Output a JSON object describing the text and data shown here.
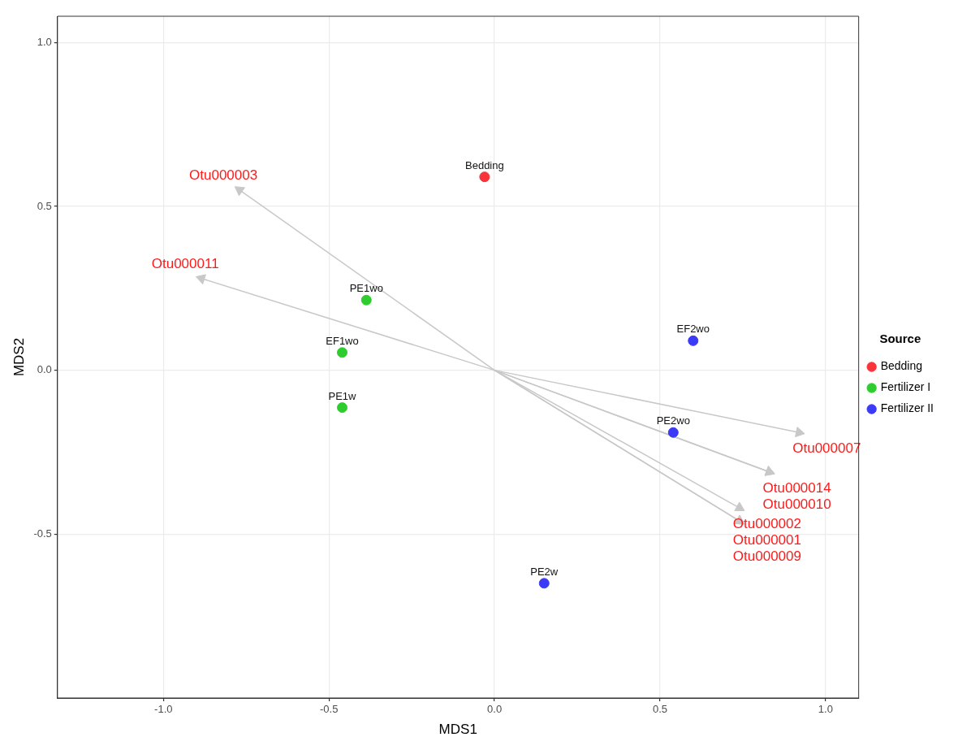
{
  "chart_data": {
    "type": "scatter",
    "xlabel": "MDS1",
    "ylabel": "MDS2",
    "legend_title": "Source",
    "legend": "right",
    "grid": true,
    "marker": "circle",
    "xlim": [
      -1.32,
      1.1
    ],
    "ylim": [
      -1.0,
      1.08
    ],
    "xticks": [
      {
        "value": -1,
        "label": "-1.0"
      },
      {
        "value": -0.5,
        "label": "-0.5"
      },
      {
        "value": 0,
        "label": "0.0"
      },
      {
        "value": 0.5,
        "label": "0.5"
      },
      {
        "value": 1,
        "label": "1.0"
      }
    ],
    "yticks": [
      {
        "value": -0.5,
        "label": "-0.5"
      },
      {
        "value": 0,
        "label": "0.0"
      },
      {
        "value": 0.5,
        "label": "0.5"
      },
      {
        "value": 1,
        "label": "1.0"
      }
    ],
    "series": [
      {
        "type": "scatter",
        "color": "#c8c8c8",
        "marker": "triangle",
        "x": [
          -0.77,
          -0.885,
          0.92,
          0.83,
          0.83,
          0.74,
          0.74,
          0.74
        ],
        "values": [
          0.55,
          0.28,
          -0.19,
          -0.31,
          -0.31,
          -0.42,
          -0.46,
          -0.46
        ],
        "value_labels": [
          "Otu000003",
          "Otu000011",
          "Otu000007",
          "Otu000014",
          "Otu000010",
          "Otu000002",
          "Otu000001",
          "Otu000009"
        ]
      },
      {
        "type": "scatter",
        "name": "Bedding",
        "color": "#f8333a",
        "x": [
          -0.03
        ],
        "values": [
          0.59
        ],
        "value_labels": [
          "Bedding"
        ]
      },
      {
        "type": "scatter",
        "name": "Fertilizer I",
        "color": "#2ecc2e",
        "x": [
          -0.387,
          -0.46,
          -0.46
        ],
        "values": [
          0.214,
          0.054,
          -0.114
        ],
        "value_labels": [
          "PE1wo",
          "EF1wo",
          "PE1w"
        ]
      },
      {
        "type": "scatter",
        "name": "Fertilizer II",
        "color": "#3b3bf5",
        "x": [
          0.6,
          0.54,
          0.15
        ],
        "values": [
          0.09,
          -0.19,
          -0.65
        ],
        "value_labels": [
          "EF2wo",
          "PE2wo",
          "PE2w"
        ]
      }
    ]
  }
}
